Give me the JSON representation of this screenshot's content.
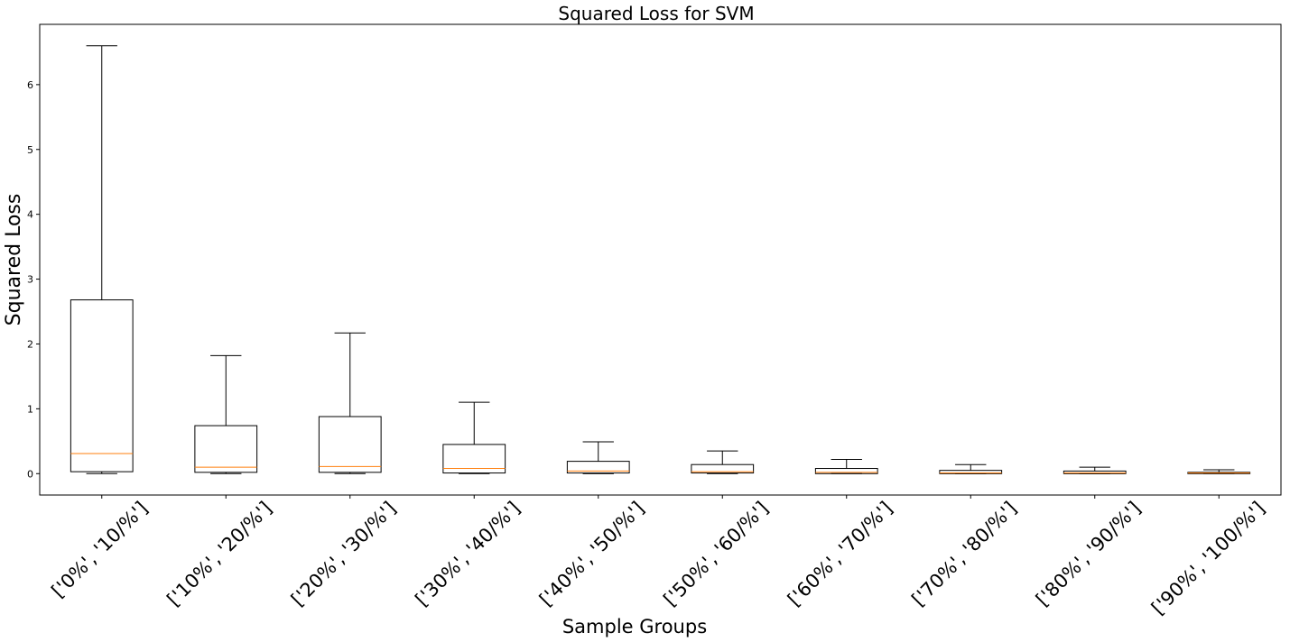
{
  "chart_data": {
    "type": "box",
    "title": "Squared Loss for SVM",
    "xlabel": "Sample Groups",
    "ylabel": "Squared Loss",
    "ylim": [
      -0.33,
      6.93
    ],
    "yticks": [
      0,
      1,
      2,
      3,
      4,
      5,
      6
    ],
    "grid": false,
    "categories": [
      "['0%', '10/%']",
      "['10%', '20/%']",
      "['20%', '30/%']",
      "['30%', '40/%']",
      "['40%', '50/%']",
      "['50%', '60/%']",
      "['60%', '70/%']",
      "['70%', '80/%']",
      "['80%', '90/%']",
      "['90%', '100/%']"
    ],
    "boxes": [
      {
        "whislo": 0.0,
        "q1": 0.03,
        "med": 0.31,
        "q3": 2.68,
        "whishi": 6.6
      },
      {
        "whislo": 0.0,
        "q1": 0.02,
        "med": 0.1,
        "q3": 0.74,
        "whishi": 1.82
      },
      {
        "whislo": 0.0,
        "q1": 0.02,
        "med": 0.11,
        "q3": 0.88,
        "whishi": 2.17
      },
      {
        "whislo": 0.0,
        "q1": 0.01,
        "med": 0.08,
        "q3": 0.45,
        "whishi": 1.1
      },
      {
        "whislo": 0.0,
        "q1": 0.01,
        "med": 0.04,
        "q3": 0.19,
        "whishi": 0.49
      },
      {
        "whislo": 0.0,
        "q1": 0.01,
        "med": 0.03,
        "q3": 0.14,
        "whishi": 0.35
      },
      {
        "whislo": 0.0,
        "q1": 0.0,
        "med": 0.02,
        "q3": 0.08,
        "whishi": 0.22
      },
      {
        "whislo": 0.0,
        "q1": 0.0,
        "med": 0.01,
        "q3": 0.05,
        "whishi": 0.14
      },
      {
        "whislo": 0.0,
        "q1": 0.0,
        "med": 0.01,
        "q3": 0.04,
        "whishi": 0.1
      },
      {
        "whislo": 0.0,
        "q1": 0.0,
        "med": 0.01,
        "q3": 0.02,
        "whishi": 0.06
      }
    ],
    "colors": {
      "box": "#000000",
      "median": "#ff7f0e"
    }
  }
}
